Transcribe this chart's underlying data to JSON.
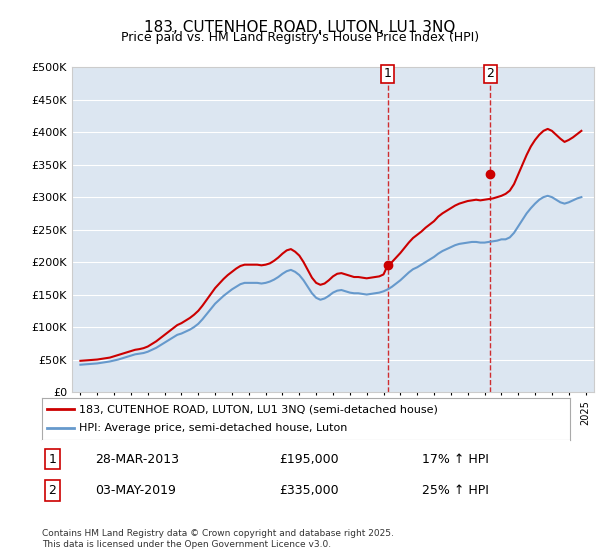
{
  "title": "183, CUTENHOE ROAD, LUTON, LU1 3NQ",
  "subtitle": "Price paid vs. HM Land Registry's House Price Index (HPI)",
  "background_color": "#dce6f1",
  "plot_background": "#dce6f1",
  "x_start_year": 1995,
  "x_end_year": 2025,
  "y_min": 0,
  "y_max": 500000,
  "y_ticks": [
    0,
    50000,
    100000,
    150000,
    200000,
    250000,
    300000,
    350000,
    400000,
    450000,
    500000
  ],
  "sale1_date": "28-MAR-2013",
  "sale1_price": 195000,
  "sale1_hpi_pct": "17% ↑ HPI",
  "sale1_label": "1",
  "sale1_x": 2013.24,
  "sale2_date": "03-MAY-2019",
  "sale2_price": 335000,
  "sale2_label": "2",
  "sale2_x": 2019.34,
  "sale2_hpi_pct": "25% ↑ HPI",
  "line1_color": "#cc0000",
  "line2_color": "#6699cc",
  "line1_label": "183, CUTENHOE ROAD, LUTON, LU1 3NQ (semi-detached house)",
  "line2_label": "HPI: Average price, semi-detached house, Luton",
  "footnote": "Contains HM Land Registry data © Crown copyright and database right 2025.\nThis data is licensed under the Open Government Licence v3.0.",
  "hpi_data": {
    "years": [
      1995.0,
      1995.25,
      1995.5,
      1995.75,
      1996.0,
      1996.25,
      1996.5,
      1996.75,
      1997.0,
      1997.25,
      1997.5,
      1997.75,
      1998.0,
      1998.25,
      1998.5,
      1998.75,
      1999.0,
      1999.25,
      1999.5,
      1999.75,
      2000.0,
      2000.25,
      2000.5,
      2000.75,
      2001.0,
      2001.25,
      2001.5,
      2001.75,
      2002.0,
      2002.25,
      2002.5,
      2002.75,
      2003.0,
      2003.25,
      2003.5,
      2003.75,
      2004.0,
      2004.25,
      2004.5,
      2004.75,
      2005.0,
      2005.25,
      2005.5,
      2005.75,
      2006.0,
      2006.25,
      2006.5,
      2006.75,
      2007.0,
      2007.25,
      2007.5,
      2007.75,
      2008.0,
      2008.25,
      2008.5,
      2008.75,
      2009.0,
      2009.25,
      2009.5,
      2009.75,
      2010.0,
      2010.25,
      2010.5,
      2010.75,
      2011.0,
      2011.25,
      2011.5,
      2011.75,
      2012.0,
      2012.25,
      2012.5,
      2012.75,
      2013.0,
      2013.25,
      2013.5,
      2013.75,
      2014.0,
      2014.25,
      2014.5,
      2014.75,
      2015.0,
      2015.25,
      2015.5,
      2015.75,
      2016.0,
      2016.25,
      2016.5,
      2016.75,
      2017.0,
      2017.25,
      2017.5,
      2017.75,
      2018.0,
      2018.25,
      2018.5,
      2018.75,
      2019.0,
      2019.25,
      2019.5,
      2019.75,
      2020.0,
      2020.25,
      2020.5,
      2020.75,
      2021.0,
      2021.25,
      2021.5,
      2021.75,
      2022.0,
      2022.25,
      2022.5,
      2022.75,
      2023.0,
      2023.25,
      2023.5,
      2023.75,
      2024.0,
      2024.25,
      2024.5,
      2024.75
    ],
    "hpi_values": [
      42000,
      42500,
      43000,
      43500,
      44000,
      45000,
      46000,
      47000,
      48500,
      50000,
      52000,
      54000,
      56000,
      58000,
      59000,
      60000,
      62000,
      65000,
      68000,
      72000,
      76000,
      80000,
      84000,
      88000,
      90000,
      93000,
      96000,
      100000,
      105000,
      112000,
      120000,
      128000,
      136000,
      142000,
      148000,
      153000,
      158000,
      162000,
      166000,
      168000,
      168000,
      168000,
      168000,
      167000,
      168000,
      170000,
      173000,
      177000,
      182000,
      186000,
      188000,
      185000,
      180000,
      172000,
      162000,
      152000,
      145000,
      142000,
      144000,
      148000,
      153000,
      156000,
      157000,
      155000,
      153000,
      152000,
      152000,
      151000,
      150000,
      151000,
      152000,
      153000,
      155000,
      158000,
      162000,
      167000,
      172000,
      178000,
      184000,
      189000,
      192000,
      196000,
      200000,
      204000,
      208000,
      213000,
      217000,
      220000,
      223000,
      226000,
      228000,
      229000,
      230000,
      231000,
      231000,
      230000,
      230000,
      231000,
      232000,
      233000,
      235000,
      235000,
      238000,
      245000,
      255000,
      265000,
      275000,
      283000,
      290000,
      296000,
      300000,
      302000,
      300000,
      296000,
      292000,
      290000,
      292000,
      295000,
      298000,
      300000
    ],
    "price_values": [
      48000,
      48500,
      49000,
      49500,
      50000,
      51000,
      52000,
      53000,
      55000,
      57000,
      59000,
      61000,
      63000,
      65000,
      66000,
      67500,
      70000,
      74000,
      78000,
      83000,
      88000,
      93000,
      98000,
      103000,
      106000,
      110000,
      114000,
      119000,
      125000,
      133000,
      142000,
      151000,
      160000,
      167000,
      174000,
      180000,
      185000,
      190000,
      194000,
      196000,
      196000,
      196000,
      196000,
      195000,
      196000,
      198000,
      202000,
      207000,
      213000,
      218000,
      220000,
      216000,
      210000,
      200000,
      188000,
      176000,
      168000,
      165000,
      167000,
      172000,
      178000,
      182000,
      183000,
      181000,
      179000,
      177000,
      177000,
      176000,
      175000,
      176000,
      177000,
      178000,
      181000,
      195000,
      200000,
      207000,
      214000,
      222000,
      230000,
      237000,
      242000,
      247000,
      253000,
      258000,
      263000,
      270000,
      275000,
      279000,
      283000,
      287000,
      290000,
      292000,
      294000,
      295000,
      296000,
      295000,
      296000,
      297000,
      298000,
      300000,
      302000,
      305000,
      310000,
      320000,
      335000,
      350000,
      365000,
      378000,
      388000,
      396000,
      402000,
      405000,
      402000,
      396000,
      390000,
      385000,
      388000,
      392000,
      397000,
      402000
    ]
  }
}
